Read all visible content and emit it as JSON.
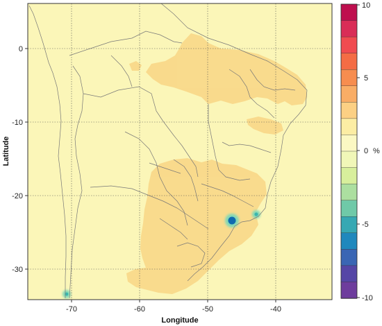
{
  "map": {
    "xlabel": "Longitude",
    "ylabel": "Latitude",
    "x_ticks": [
      "-70",
      "-60",
      "-50",
      "-40"
    ],
    "y_ticks": [
      "0",
      "-10",
      "-20",
      "-30"
    ],
    "background_color": "#fbf6b8",
    "positive_fill_color": "#f9d98a",
    "anomaly_colors": [
      "#0f6ab0",
      "#3cb6ad",
      "#83d8b6"
    ],
    "grid": true
  },
  "legend": {
    "unit": "%",
    "tick_labels": [
      "10",
      "5",
      "0",
      "-5",
      "-10"
    ],
    "colors": [
      "#be0f4e",
      "#d92d57",
      "#f04b50",
      "#f46c45",
      "#f78d4f",
      "#f9ad66",
      "#fcd084",
      "#fceda4",
      "#fbf8c3",
      "#f1f7b8",
      "#d8ef9c",
      "#acdfa0",
      "#6fc9a8",
      "#36a8b3",
      "#1f88bd",
      "#3a66b4",
      "#5546a6",
      "#6e3d9d"
    ]
  }
}
